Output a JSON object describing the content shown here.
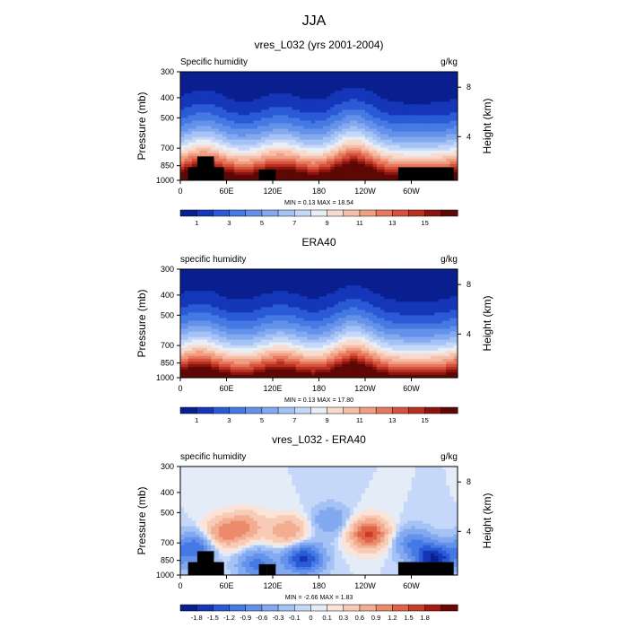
{
  "title": "JJA",
  "colors": {
    "humidity_ramp": [
      "#0a1f8f",
      "#1536b8",
      "#2b5ad6",
      "#4579e3",
      "#6492ea",
      "#83a9f0",
      "#a5c2f5",
      "#c6d8fa",
      "#e9eef5",
      "#f7dbcf",
      "#f5bfa9",
      "#f09f82",
      "#e6785d",
      "#d6523e",
      "#b8311f",
      "#8c1410",
      "#5e0806"
    ],
    "diff_ramp": [
      "#0a1f8f",
      "#1536b8",
      "#2b5ad6",
      "#4579e3",
      "#6492ea",
      "#83a9f0",
      "#a5c2f5",
      "#c6d8fa",
      "#e4ecf7",
      "#fbe4d7",
      "#f7cbb5",
      "#f3ad91",
      "#ec8b6c",
      "#e06348",
      "#c93d28",
      "#a51a12",
      "#6e0605"
    ],
    "topography": "#000000"
  },
  "chart_data": [
    {
      "type": "contour",
      "title": "vres_L032 (yrs 2001-2004)",
      "left_label": "Specific humidity",
      "units": "g/kg",
      "ylabel": "Pressure (mb)",
      "ylabel_right": "Height (km)",
      "x_ticks": [
        "0",
        "60E",
        "120E",
        "180",
        "120W",
        "60W"
      ],
      "y_ticks": [
        "300",
        "400",
        "500",
        "700",
        "850",
        "1000"
      ],
      "height_ticks": [
        "8",
        "4"
      ],
      "min_label": "MIN =",
      "min_value": "0.13",
      "max_label": "MAX =",
      "max_value": "18.54",
      "colorbar_labels": [
        "1",
        "3",
        "5",
        "7",
        "9",
        "11",
        "13",
        "15"
      ],
      "topography": true,
      "surface_value": 17.5,
      "peaks": [
        [
          30,
          0.7
        ],
        [
          130,
          0.5
        ],
        [
          225,
          1.0
        ]
      ]
    },
    {
      "type": "contour",
      "title": "ERA40",
      "left_label": "specific humidity",
      "units": "g/kg",
      "ylabel": "Pressure (mb)",
      "ylabel_right": "Height (km)",
      "x_ticks": [
        "0",
        "60E",
        "120E",
        "180",
        "120W",
        "60W"
      ],
      "y_ticks": [
        "300",
        "400",
        "500",
        "700",
        "850",
        "1000"
      ],
      "height_ticks": [
        "8",
        "4"
      ],
      "min_label": "MIN =",
      "min_value": "0.13",
      "max_label": "MAX =",
      "max_value": "17.80",
      "colorbar_labels": [
        "1",
        "3",
        "5",
        "7",
        "9",
        "11",
        "13",
        "15"
      ],
      "topography": false,
      "surface_value": 16.5,
      "peaks": [
        [
          25,
          0.6
        ],
        [
          130,
          0.5
        ],
        [
          225,
          0.9
        ]
      ]
    },
    {
      "type": "contour",
      "title": "vres_L032 - ERA40",
      "left_label": "specific humidity",
      "units": "g/kg",
      "ylabel": "Pressure (mb)",
      "ylabel_right": "Height (km)",
      "x_ticks": [
        "0",
        "60E",
        "120E",
        "180",
        "120W",
        "60W"
      ],
      "y_ticks": [
        "300",
        "400",
        "500",
        "700",
        "850",
        "1000"
      ],
      "height_ticks": [
        "8",
        "4"
      ],
      "min_label": "MIN =",
      "min_value": "-2.66",
      "max_label": "MAX =",
      "max_value": "1.83",
      "colorbar_labels": [
        "-1.8",
        "-1.5",
        "-1.2",
        "-0.9",
        "-0.6",
        "-0.3",
        "-0.1",
        "0",
        "0.1",
        "0.3",
        "0.6",
        "0.9",
        "1.2",
        "1.5",
        "1.8"
      ],
      "topography": true,
      "diff_blobs": [
        [
          55,
          0.62,
          1.0
        ],
        [
          85,
          0.55,
          0.8
        ],
        [
          140,
          0.6,
          0.9
        ],
        [
          245,
          0.62,
          1.6
        ],
        [
          300,
          0.7,
          -0.8
        ],
        [
          20,
          0.75,
          -1.2
        ],
        [
          160,
          0.85,
          -1.6
        ],
        [
          100,
          0.9,
          -1.0
        ],
        [
          195,
          0.5,
          -0.6
        ],
        [
          330,
          0.85,
          -1.8
        ]
      ]
    }
  ]
}
